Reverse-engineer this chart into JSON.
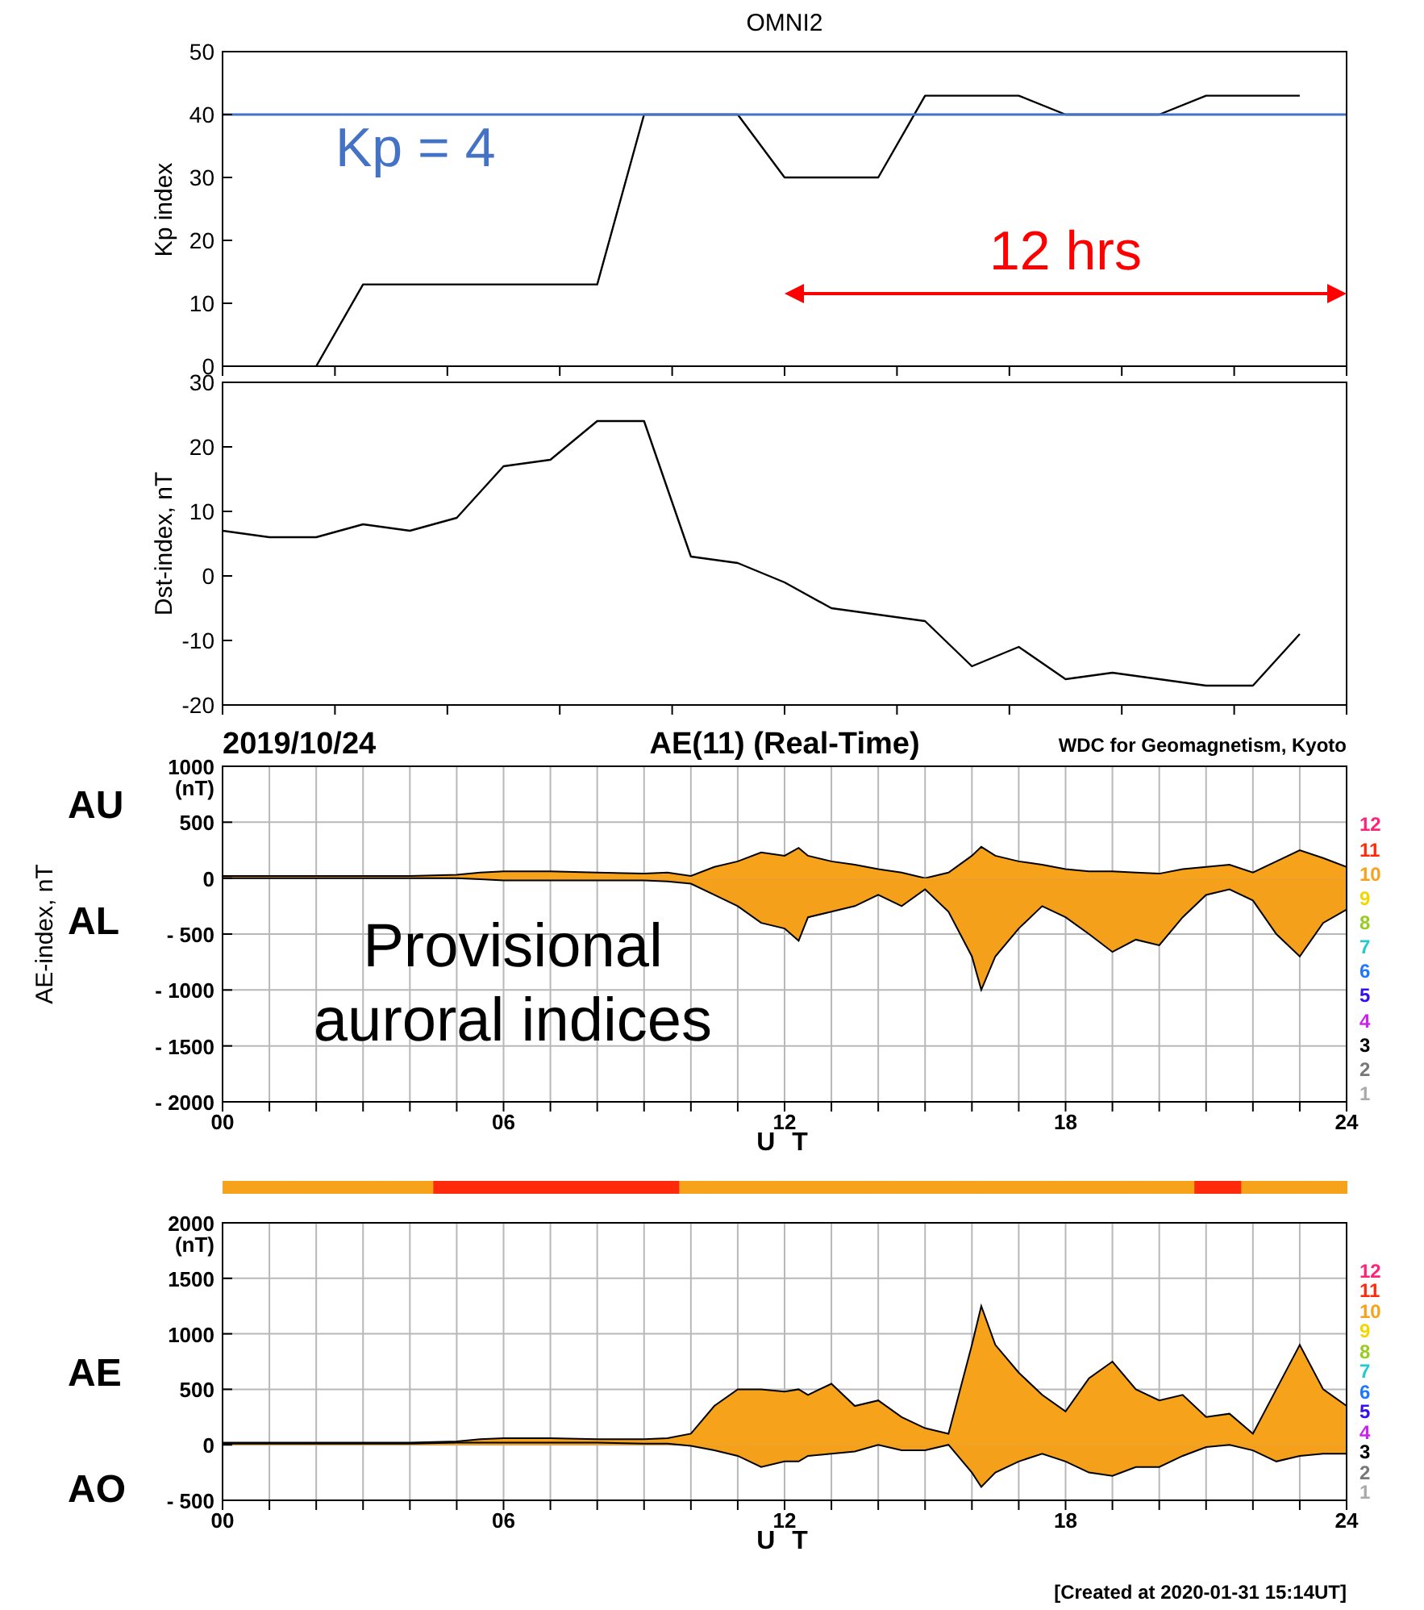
{
  "chart_data": [
    {
      "type": "line",
      "title": "OMNI2",
      "ylabel": "Kp index",
      "series": [
        {
          "color": "#000000",
          "x": [
            2,
            3,
            8,
            9,
            11,
            12,
            14,
            15,
            17,
            18,
            20,
            21,
            23
          ],
          "values": [
            0,
            13,
            13,
            40,
            40,
            30,
            30,
            43,
            43,
            40,
            40,
            43,
            43
          ]
        }
      ],
      "xlim": [
        0,
        24
      ],
      "xticks": [
        {
          "value": 0,
          "label": null
        },
        {
          "value": 2.4,
          "label": null
        },
        {
          "value": 4.8,
          "label": null
        },
        {
          "value": 7.2,
          "label": null
        },
        {
          "value": 9.6,
          "label": null
        },
        {
          "value": 12,
          "label": null
        },
        {
          "value": 14.4,
          "label": null
        },
        {
          "value": 16.8,
          "label": null
        },
        {
          "value": 19.2,
          "label": null
        },
        {
          "value": 21.6,
          "label": null
        },
        {
          "value": 24,
          "label": null
        }
      ],
      "ylim": [
        0,
        50
      ],
      "yticks": [
        0,
        10,
        20,
        30,
        40,
        50
      ],
      "tick_labels": "y",
      "ref_lines": [
        {
          "axis": "y",
          "value": 40,
          "color": "#4472c4"
        }
      ],
      "annotations": [
        "Kp = 4",
        "12 hrs"
      ]
    },
    {
      "type": "line",
      "ylabel": "Dst-index, nT",
      "series": [
        {
          "color": "#000000",
          "x": [
            0,
            1,
            2,
            3,
            4,
            5,
            6,
            7,
            8,
            9,
            10,
            11,
            12,
            13,
            14,
            15,
            16,
            17,
            18,
            19,
            20,
            21,
            22,
            23
          ],
          "values": [
            7,
            6,
            6,
            8,
            7,
            9,
            17,
            18,
            24,
            24,
            3,
            2,
            -1,
            -5,
            -6,
            -7,
            -14,
            -11,
            -16,
            -15,
            -16,
            -17,
            -17,
            -9
          ]
        }
      ],
      "xlim": [
        0,
        24
      ],
      "xticks": [
        {
          "value": 0,
          "label": null
        },
        {
          "value": 2.4,
          "label": null
        },
        {
          "value": 4.8,
          "label": null
        },
        {
          "value": 7.2,
          "label": null
        },
        {
          "value": 9.6,
          "label": null
        },
        {
          "value": 12,
          "label": null
        },
        {
          "value": 14.4,
          "label": null
        },
        {
          "value": 16.8,
          "label": null
        },
        {
          "value": 19.2,
          "label": null
        },
        {
          "value": 21.6,
          "label": null
        },
        {
          "value": 24,
          "label": null
        }
      ],
      "ylim": [
        -20,
        30
      ],
      "yticks": [
        -20,
        -10,
        0,
        10,
        20,
        30
      ],
      "tick_labels": "y"
    },
    {
      "type": "area",
      "title": "AE(11) (Real-Time)",
      "subtitle": "2019/10/24",
      "ylabel": "AE-index, nT",
      "xlabel": "U T",
      "x": [
        0,
        1,
        2,
        3,
        4,
        5,
        5.5,
        6,
        7,
        8,
        9,
        9.5,
        10,
        10.5,
        11,
        11.5,
        12,
        12.3,
        12.5,
        13,
        13.5,
        14,
        14.5,
        15,
        15.5,
        16,
        16.2,
        16.5,
        17,
        17.5,
        18,
        18.5,
        19,
        19.5,
        20,
        20.5,
        21,
        21.5,
        22,
        22.5,
        23,
        23.5,
        24
      ],
      "series": [
        {
          "name": "AU",
          "color": "#f7a21b",
          "values": [
            20,
            20,
            20,
            20,
            20,
            30,
            50,
            60,
            60,
            50,
            40,
            50,
            20,
            100,
            150,
            230,
            200,
            270,
            200,
            150,
            120,
            80,
            50,
            0,
            50,
            200,
            280,
            200,
            150,
            120,
            80,
            60,
            60,
            50,
            40,
            80,
            100,
            120,
            50,
            150,
            250,
            180,
            100
          ]
        },
        {
          "name": "AL",
          "color": "#f4a01a",
          "values": [
            0,
            0,
            0,
            0,
            0,
            0,
            -10,
            -20,
            -20,
            -20,
            -20,
            -30,
            -50,
            -150,
            -250,
            -400,
            -450,
            -560,
            -350,
            -300,
            -250,
            -150,
            -250,
            -100,
            -300,
            -700,
            -1000,
            -700,
            -450,
            -250,
            -350,
            -500,
            -660,
            -550,
            -600,
            -350,
            -150,
            -100,
            -200,
            -500,
            -700,
            -400,
            -280
          ]
        }
      ],
      "xlim": [
        0,
        24
      ],
      "xticks": [
        {
          "value": 0,
          "label": "00"
        },
        {
          "value": 1,
          "label": null
        },
        {
          "value": 2,
          "label": null
        },
        {
          "value": 3,
          "label": null
        },
        {
          "value": 4,
          "label": null
        },
        {
          "value": 5,
          "label": null
        },
        {
          "value": 6,
          "label": "06"
        },
        {
          "value": 7,
          "label": null
        },
        {
          "value": 8,
          "label": null
        },
        {
          "value": 9,
          "label": null
        },
        {
          "value": 10,
          "label": null
        },
        {
          "value": 11,
          "label": null
        },
        {
          "value": 12,
          "label": "12"
        },
        {
          "value": 13,
          "label": null
        },
        {
          "value": 14,
          "label": null
        },
        {
          "value": 15,
          "label": null
        },
        {
          "value": 16,
          "label": null
        },
        {
          "value": 17,
          "label": null
        },
        {
          "value": 18,
          "label": "18"
        },
        {
          "value": 19,
          "label": null
        },
        {
          "value": 20,
          "label": null
        },
        {
          "value": 21,
          "label": null
        },
        {
          "value": 22,
          "label": null
        },
        {
          "value": 23,
          "label": null
        },
        {
          "value": 24,
          "label": "24"
        }
      ],
      "ylim": [
        -2000,
        1000
      ],
      "yticks": [
        {
          "value": -2000,
          "label": "- 2000"
        },
        {
          "value": -1500,
          "label": "- 1500"
        },
        {
          "value": -1000,
          "label": "- 1000"
        },
        {
          "value": -500,
          "label": "- 500"
        },
        0,
        500,
        {
          "value": 1000,
          "label": "1000\n(nT)"
        }
      ],
      "grid": true,
      "annotations": [
        "WDC for Geomagnetism, Kyoto",
        "Provisional auroral indices",
        "12",
        "11",
        "10",
        "9",
        "8",
        "7",
        "6",
        "5",
        "4",
        "3",
        "2",
        "1"
      ]
    },
    {
      "type": "area",
      "xlabel": "U T",
      "x": [
        0,
        1,
        2,
        3,
        4,
        5,
        5.5,
        6,
        7,
        8,
        9,
        9.5,
        10,
        10.5,
        11,
        11.5,
        12,
        12.3,
        12.5,
        13,
        13.5,
        14,
        14.5,
        15,
        15.5,
        16,
        16.2,
        16.5,
        17,
        17.5,
        18,
        18.5,
        19,
        19.5,
        20,
        20.5,
        21,
        21.5,
        22,
        22.5,
        23,
        23.5,
        24
      ],
      "series": [
        {
          "name": "AE",
          "color": "#f7a21b",
          "values": [
            20,
            20,
            20,
            20,
            20,
            30,
            50,
            60,
            60,
            50,
            50,
            60,
            100,
            350,
            500,
            500,
            480,
            500,
            450,
            550,
            350,
            400,
            250,
            150,
            100,
            900,
            1250,
            900,
            650,
            450,
            300,
            600,
            750,
            500,
            400,
            450,
            250,
            280,
            100,
            500,
            900,
            500,
            350
          ],
          "colors": [
            "#f7a21b",
            "#f7a21b",
            "#f7a21b",
            "#f7a21b",
            "#f7a21b",
            "#ff2a0a",
            "#ff2a0a",
            "#ff2a0a",
            "#ff2a0a",
            "#ff2a0a",
            "#ff2a0a",
            "#ff2a0a",
            "#f7a21b",
            "#f7a21b",
            "#f7a21b",
            "#f7a21b",
            "#f7a21b",
            "#f7a21b",
            "#f7a21b",
            "#f7a21b",
            "#f7a21b",
            "#f7a21b",
            "#f7a21b",
            "#f7a21b",
            "#f7a21b",
            "#f7a21b",
            "#f7a21b",
            "#f7a21b",
            "#f7a21b",
            "#f7a21b",
            "#f7a21b",
            "#f7a21b",
            "#f7a21b",
            "#f7a21b",
            "#f7a21b",
            "#f7a21b",
            "#ff2a0a",
            "#ff2a0a",
            "#f7a21b",
            "#f7a21b",
            "#f7a21b",
            "#f7a21b",
            "#f7a21b"
          ]
        },
        {
          "name": "AO",
          "color": "#f4a01a",
          "values": [
            10,
            10,
            10,
            10,
            10,
            20,
            20,
            20,
            20,
            20,
            10,
            10,
            -10,
            -50,
            -100,
            -200,
            -150,
            -150,
            -100,
            -80,
            -60,
            0,
            -50,
            -50,
            0,
            -250,
            -380,
            -250,
            -150,
            -80,
            -150,
            -250,
            -280,
            -200,
            -200,
            -100,
            -20,
            0,
            -50,
            -150,
            -100,
            -80,
            -80
          ]
        }
      ],
      "xlim": [
        0,
        24
      ],
      "xticks": [
        {
          "value": 0,
          "label": "00"
        },
        {
          "value": 1,
          "label": null
        },
        {
          "value": 2,
          "label": null
        },
        {
          "value": 3,
          "label": null
        },
        {
          "value": 4,
          "label": null
        },
        {
          "value": 5,
          "label": null
        },
        {
          "value": 6,
          "label": "06"
        },
        {
          "value": 7,
          "label": null
        },
        {
          "value": 8,
          "label": null
        },
        {
          "value": 9,
          "label": null
        },
        {
          "value": 10,
          "label": null
        },
        {
          "value": 11,
          "label": null
        },
        {
          "value": 12,
          "label": "12"
        },
        {
          "value": 13,
          "label": null
        },
        {
          "value": 14,
          "label": null
        },
        {
          "value": 15,
          "label": null
        },
        {
          "value": 16,
          "label": null
        },
        {
          "value": 17,
          "label": null
        },
        {
          "value": 18,
          "label": "18"
        },
        {
          "value": 19,
          "label": null
        },
        {
          "value": 20,
          "label": null
        },
        {
          "value": 21,
          "label": null
        },
        {
          "value": 22,
          "label": null
        },
        {
          "value": 23,
          "label": null
        },
        {
          "value": 24,
          "label": "24"
        }
      ],
      "ylim": [
        -500,
        2000
      ],
      "yticks": [
        {
          "value": -500,
          "label": "- 500"
        },
        0,
        500,
        1000,
        1500,
        {
          "value": 2000,
          "label": "2000\n(nT)"
        }
      ],
      "grid": true,
      "annotations": [
        "[Created at 2020-01-31 15:14UT]",
        "12",
        "11",
        "10",
        "9",
        "8",
        "7",
        "6",
        "5",
        "4",
        "3",
        "2",
        "1"
      ]
    }
  ]
}
